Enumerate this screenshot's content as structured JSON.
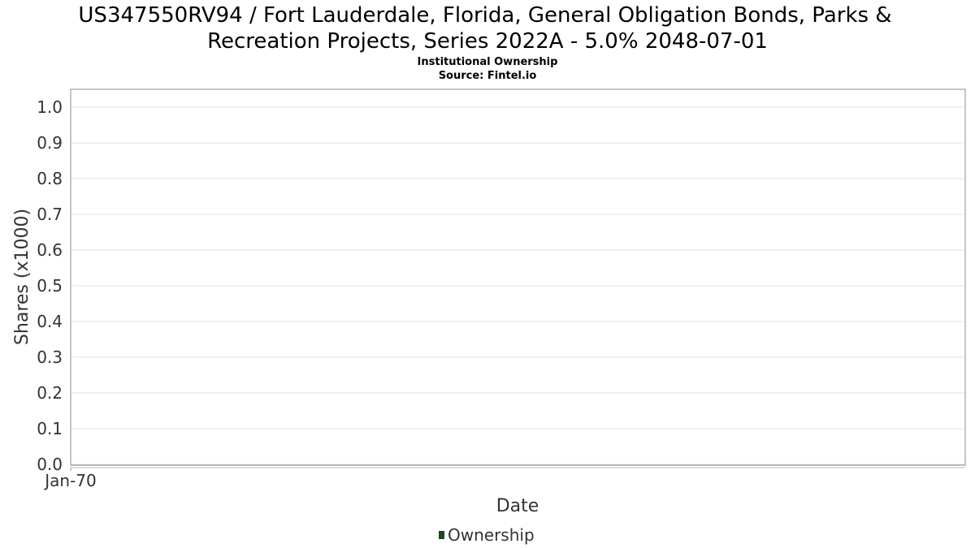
{
  "chart_data": {
    "type": "line",
    "title_line1": "US347550RV94 / Fort Lauderdale, Florida, General Obligation Bonds, Parks &",
    "title_line2": "Recreation Projects, Series 2022A - 5.0% 2048-07-01",
    "subtitle": "Institutional Ownership",
    "source": "Source: Fintel.io",
    "xlabel": "Date",
    "ylabel": "Shares (x1000)",
    "ylim": [
      0.0,
      1.0
    ],
    "y_ticks": [
      "0.0",
      "0.1",
      "0.2",
      "0.3",
      "0.4",
      "0.5",
      "0.6",
      "0.7",
      "0.8",
      "0.9",
      "1.0"
    ],
    "x_ticks": [
      "Jan-70"
    ],
    "grid": true,
    "legend_position": "bottom-center",
    "series": [
      {
        "name": "Ownership",
        "color": "#1a4a24",
        "x": [],
        "values": []
      }
    ]
  }
}
